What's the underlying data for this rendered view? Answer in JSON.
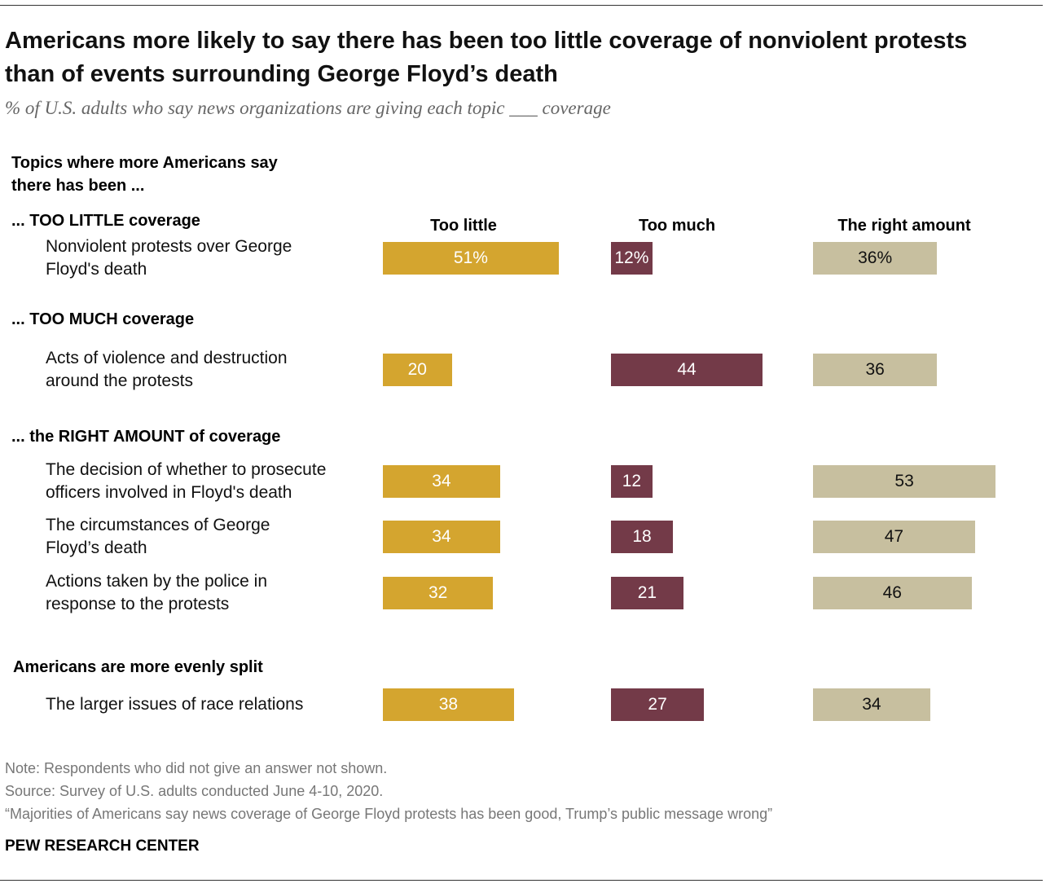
{
  "chart_data": {
    "type": "bar",
    "title": "Americans more likely to say there has been too little coverage of nonviolent protests than of events surrounding George Floyd’s death",
    "subtitle": "% of U.S. adults who say news organizations are giving each topic ___ coverage",
    "groups_heading": "Topics where more Americans say there has been ...",
    "groups": [
      {
        "label": "... TOO LITTLE coverage",
        "categories": [
          "Nonviolent protests over George Floyd's death"
        ]
      },
      {
        "label": "... TOO MUCH coverage",
        "categories": [
          "Acts of violence and destruction around the protests"
        ]
      },
      {
        "label": "... the RIGHT AMOUNT of coverage",
        "categories": [
          "The decision of whether to prosecute officers involved in Floyd's death",
          "The circumstances of George Floyd’s death",
          "Actions taken by the police in response to the protests"
        ]
      },
      {
        "label": "Americans are more evenly split",
        "categories": [
          "The larger issues of race relations"
        ]
      }
    ],
    "series": [
      {
        "name": "Too little",
        "color": "#d4a52f",
        "values": [
          51,
          20,
          34,
          34,
          32,
          38
        ],
        "value_labels": [
          "51%",
          "20",
          "34",
          "34",
          "32",
          "38"
        ]
      },
      {
        "name": "Too much",
        "color": "#733a48",
        "values": [
          12,
          44,
          12,
          18,
          21,
          27
        ],
        "value_labels": [
          "12%",
          "44",
          "12",
          "18",
          "21",
          "27"
        ]
      },
      {
        "name": "The right amount",
        "color": "#c7bf9f",
        "values": [
          36,
          36,
          53,
          47,
          46,
          34
        ],
        "value_labels": [
          "36%",
          "36",
          "53",
          "47",
          "46",
          "34"
        ]
      }
    ],
    "note": "Note: Respondents who did not give an answer not shown.",
    "source": "Source: Survey of U.S. adults conducted June 4-10, 2020.",
    "report": "“Majorities of Americans say news coverage of George Floyd protests has been good, Trump’s public message wrong”",
    "credit": "PEW RESEARCH CENTER"
  }
}
